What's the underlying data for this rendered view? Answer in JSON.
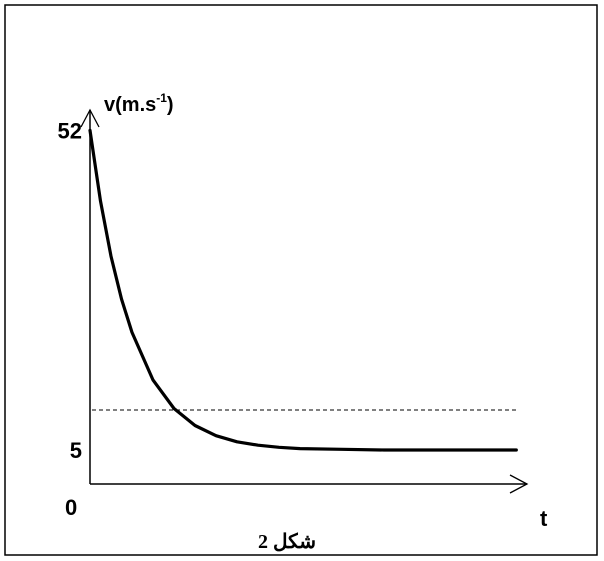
{
  "chart_data": {
    "type": "line",
    "xlabel": "t",
    "ylabel": {
      "base": "v(m.s",
      "sup": "-1",
      "close": ")"
    },
    "origin_label": "0",
    "ylim": [
      0,
      60
    ],
    "y_ticks": [
      {
        "value": 52,
        "label": "52"
      },
      {
        "value": 5,
        "label": "5"
      }
    ],
    "series": [
      {
        "initial_value": 52,
        "limit_value": 5,
        "shape": "exponential-decay",
        "points": [
          [
            0,
            52
          ],
          [
            0.5,
            41.6
          ],
          [
            1,
            33.5
          ],
          [
            1.5,
            27.2
          ],
          [
            2,
            22.3
          ],
          [
            3,
            15.3
          ],
          [
            4,
            11.1
          ],
          [
            5,
            8.6
          ],
          [
            6,
            7.1
          ],
          [
            7,
            6.2
          ],
          [
            8,
            5.7
          ],
          [
            9,
            5.4
          ],
          [
            10,
            5.2
          ],
          [
            12,
            5.1
          ],
          [
            14,
            5.0
          ],
          [
            17,
            5.0
          ],
          [
            20.3,
            5.0
          ]
        ]
      }
    ],
    "guide_lines": [
      {
        "y": 5,
        "style": "dashed"
      }
    ],
    "grid": false,
    "legend": "none"
  },
  "caption": "شكل 2"
}
